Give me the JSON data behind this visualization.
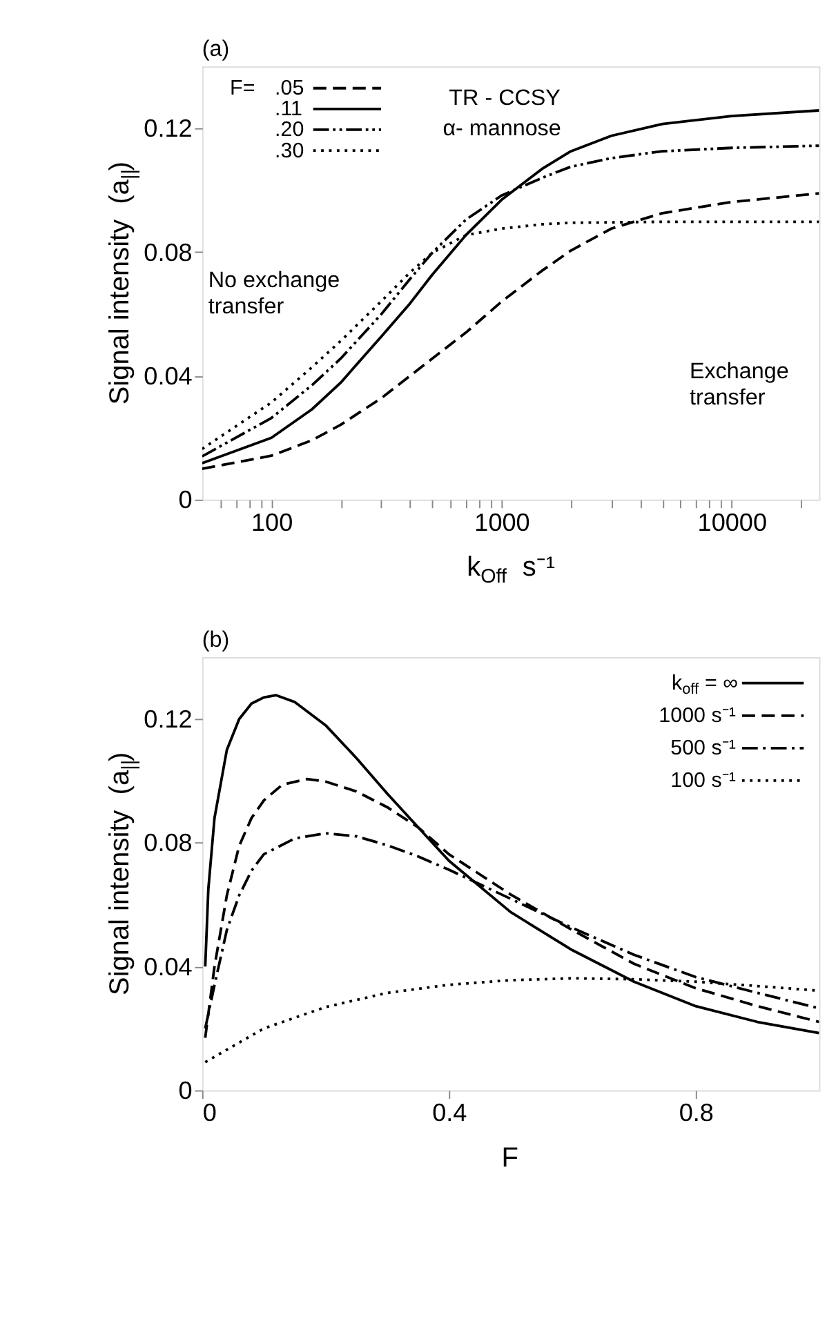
{
  "chart_data": [
    {
      "type": "line",
      "title": "(a)",
      "xlabel": "k$_{Off}$  s⁻¹",
      "ylabel": "Signal intensity  (a$_{||}$)",
      "legend_title": "F=",
      "legend": "top left",
      "log": "x",
      "grid": false,
      "xlim": [
        50,
        24000
      ],
      "xticks": [
        {
          "value": 60,
          "label": null
        },
        {
          "value": 70,
          "label": null
        },
        {
          "value": 80,
          "label": null
        },
        {
          "value": 90,
          "label": null
        },
        100,
        {
          "value": 200,
          "label": null
        },
        {
          "value": 300,
          "label": null
        },
        {
          "value": 400,
          "label": null
        },
        {
          "value": 500,
          "label": null
        },
        {
          "value": 600,
          "label": null
        },
        {
          "value": 700,
          "label": null
        },
        {
          "value": 800,
          "label": null
        },
        {
          "value": 900,
          "label": null
        },
        1000,
        {
          "value": 2000,
          "label": null
        },
        {
          "value": 3000,
          "label": null
        },
        {
          "value": 4000,
          "label": null
        },
        {
          "value": 5000,
          "label": null
        },
        {
          "value": 6000,
          "label": null
        },
        {
          "value": 7000,
          "label": null
        },
        {
          "value": 8000,
          "label": null
        },
        {
          "value": 9000,
          "label": null
        },
        10000,
        {
          "value": 20000,
          "label": null
        }
      ],
      "ylim": [
        0,
        0.14
      ],
      "yticks": [
        0,
        0.04,
        0.08,
        0.12
      ],
      "annotations": [
        "TR - CCSY",
        "α- mannose",
        "No exchange\ntransfer",
        "Exchange\ntransfer"
      ],
      "series": [
        {
          "name": ".05",
          "color": "#000000",
          "line_style": "dashed",
          "x": [
            50,
            100,
            150,
            200,
            300,
            500,
            700,
            1000,
            1500,
            2000,
            3000,
            5000,
            10000,
            24000
          ],
          "values": [
            0.01,
            0.0142,
            0.0192,
            0.0242,
            0.0328,
            0.0456,
            0.054,
            0.064,
            0.074,
            0.0805,
            0.0876,
            0.0926,
            0.0962,
            0.099
          ]
        },
        {
          "name": ".11",
          "color": "#000000",
          "line_style": "solid",
          "x": [
            50,
            100,
            150,
            200,
            300,
            400,
            500,
            700,
            1000,
            1500,
            2000,
            3000,
            5000,
            10000,
            24000
          ],
          "values": [
            0.0118,
            0.02,
            0.0292,
            0.0378,
            0.0527,
            0.0634,
            0.0727,
            0.0855,
            0.0969,
            0.1069,
            0.1126,
            0.1176,
            0.1214,
            0.124,
            0.1258
          ]
        },
        {
          "name": ".20",
          "color": "#000000",
          "line_style": "dashdotdot",
          "x": [
            50,
            100,
            150,
            200,
            300,
            400,
            500,
            700,
            1000,
            1500,
            2000,
            3000,
            5000,
            10000,
            24000
          ],
          "values": [
            0.014,
            0.0264,
            0.037,
            0.0456,
            0.0599,
            0.0713,
            0.0798,
            0.0905,
            0.0983,
            0.104,
            0.1076,
            0.1104,
            0.1126,
            0.1137,
            0.1144
          ]
        },
        {
          "name": ".30",
          "color": "#000000",
          "line_style": "dotted",
          "x": [
            50,
            100,
            150,
            200,
            300,
            400,
            500,
            700,
            1000,
            1500,
            2000,
            5000,
            24000
          ],
          "values": [
            0.0164,
            0.0314,
            0.0428,
            0.0513,
            0.0641,
            0.0734,
            0.0798,
            0.0855,
            0.0876,
            0.089,
            0.0895,
            0.0898,
            0.0898
          ]
        }
      ]
    },
    {
      "type": "line",
      "title": "(b)",
      "xlabel": "F",
      "ylabel": "Signal intensity  (a$_{||}$)",
      "legend": "top right",
      "grid": false,
      "xlim": [
        0,
        1
      ],
      "xticks": [
        0,
        0.4,
        0.8
      ],
      "ylim": [
        0,
        0.14
      ],
      "yticks": [
        0,
        0.04,
        0.08,
        0.12
      ],
      "series": [
        {
          "name": "k$_{off}$ = ∞",
          "color": "#000000",
          "line_style": "solid",
          "x": [
            0.005,
            0.01,
            0.02,
            0.04,
            0.06,
            0.08,
            0.1,
            0.12,
            0.15,
            0.2,
            0.25,
            0.3,
            0.35,
            0.4,
            0.5,
            0.6,
            0.7,
            0.8,
            0.9,
            1.0
          ],
          "values": [
            0.04,
            0.065,
            0.088,
            0.11,
            0.12,
            0.125,
            0.127,
            0.1277,
            0.1255,
            0.118,
            0.1074,
            0.0959,
            0.085,
            0.0742,
            0.0576,
            0.0453,
            0.0351,
            0.0272,
            0.0221,
            0.0185
          ]
        },
        {
          "name": "1000 s⁻¹",
          "color": "#000000",
          "line_style": "dashed",
          "x": [
            0.005,
            0.02,
            0.04,
            0.06,
            0.08,
            0.1,
            0.13,
            0.17,
            0.2,
            0.25,
            0.3,
            0.35,
            0.4,
            0.5,
            0.6,
            0.7,
            0.8,
            0.9,
            1.0
          ],
          "values": [
            0.017,
            0.04,
            0.063,
            0.079,
            0.088,
            0.0937,
            0.0988,
            0.1006,
            0.0998,
            0.0966,
            0.0915,
            0.085,
            0.0763,
            0.0633,
            0.0518,
            0.0409,
            0.033,
            0.0272,
            0.0221
          ]
        },
        {
          "name": "500 s⁻¹",
          "color": "#000000",
          "line_style": "dashdot",
          "x": [
            0.005,
            0.02,
            0.04,
            0.06,
            0.08,
            0.1,
            0.15,
            0.2,
            0.25,
            0.3,
            0.35,
            0.4,
            0.5,
            0.6,
            0.7,
            0.8,
            0.9,
            1.0
          ],
          "values": [
            0.02,
            0.034,
            0.0518,
            0.063,
            0.071,
            0.0763,
            0.0814,
            0.0831,
            0.0821,
            0.0792,
            0.0756,
            0.0713,
            0.0619,
            0.0525,
            0.0438,
            0.0366,
            0.0315,
            0.0265
          ]
        },
        {
          "name": "100 s⁻¹",
          "color": "#000000",
          "line_style": "dotted",
          "x": [
            0.005,
            0.1,
            0.2,
            0.3,
            0.4,
            0.5,
            0.6,
            0.7,
            0.8,
            0.9,
            1.0
          ],
          "values": [
            0.0091,
            0.02,
            0.0269,
            0.0315,
            0.0341,
            0.0356,
            0.0362,
            0.0359,
            0.0351,
            0.0337,
            0.0322
          ]
        }
      ]
    }
  ]
}
